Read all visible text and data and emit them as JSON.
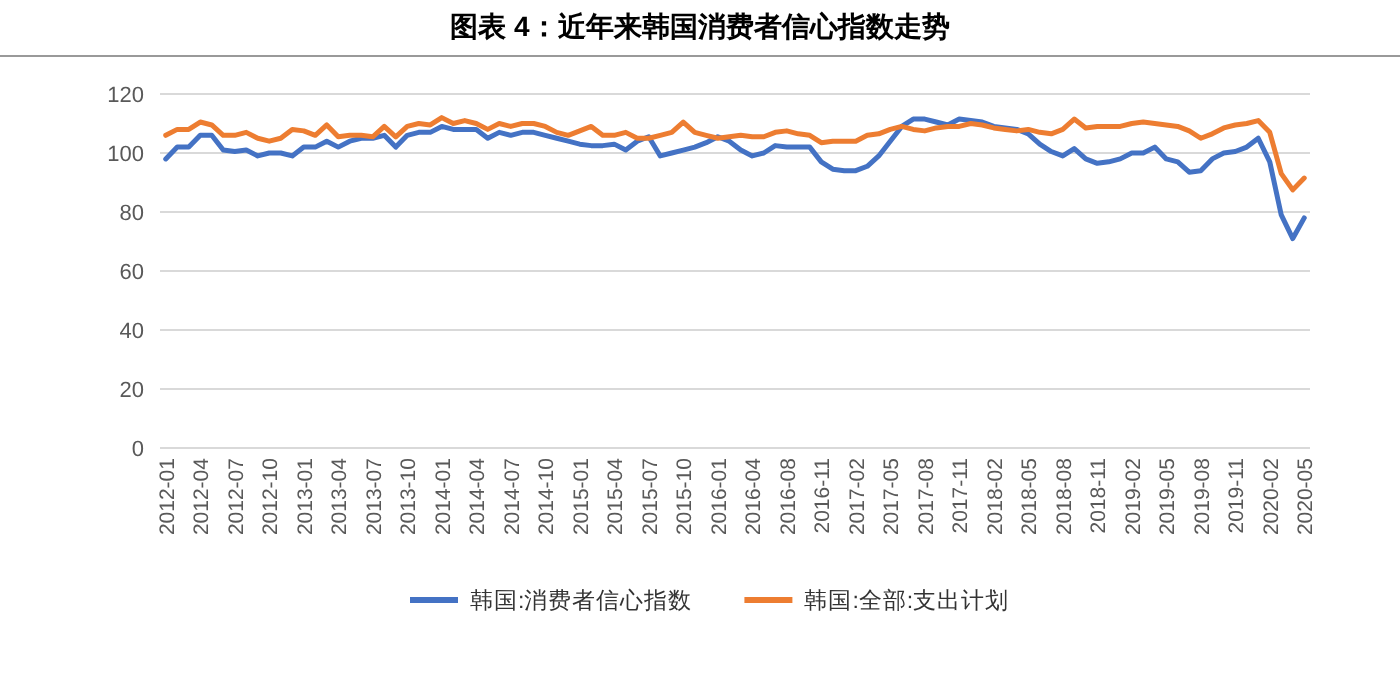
{
  "chart_data": {
    "type": "line",
    "title": "图表 4：近年来韩国消费者信心指数走势",
    "categories": [
      "2012-01",
      null,
      null,
      "2012-04",
      null,
      null,
      "2012-07",
      null,
      null,
      "2012-10",
      null,
      null,
      "2013-01",
      null,
      null,
      "2013-04",
      null,
      null,
      "2013-07",
      null,
      null,
      "2013-10",
      null,
      null,
      "2014-01",
      null,
      null,
      "2014-04",
      null,
      null,
      "2014-07",
      null,
      null,
      "2014-10",
      null,
      null,
      "2015-01",
      null,
      null,
      "2015-04",
      null,
      null,
      "2015-07",
      null,
      null,
      "2015-10",
      null,
      null,
      "2016-01",
      null,
      null,
      "2016-04",
      null,
      null,
      "2016-08",
      null,
      null,
      "2016-11",
      null,
      null,
      "2017-02",
      null,
      null,
      "2017-05",
      null,
      null,
      "2017-08",
      null,
      null,
      "2017-11",
      null,
      null,
      "2018-02",
      null,
      null,
      "2018-05",
      null,
      null,
      "2018-08",
      null,
      null,
      "2018-11",
      null,
      null,
      "2019-02",
      null,
      null,
      "2019-05",
      null,
      null,
      "2019-08",
      null,
      null,
      "2019-11",
      null,
      null,
      "2020-02",
      null,
      null,
      "2020-05"
    ],
    "series": [
      {
        "name": "韩国:消费者信心指数",
        "color": "#4472c4",
        "values": [
          98,
          102,
          102,
          106,
          106,
          101,
          100.5,
          101,
          99,
          100,
          100,
          99,
          102,
          102,
          104,
          102,
          104,
          105,
          105,
          106,
          102,
          106,
          107,
          107,
          109,
          108,
          108,
          108,
          105,
          107,
          106,
          107,
          107,
          106,
          105,
          104,
          103,
          102.5,
          102.5,
          103,
          101,
          104,
          105.5,
          99,
          100,
          101,
          102,
          103.5,
          105.5,
          104,
          101,
          99,
          100,
          102.5,
          102,
          102,
          102,
          97,
          94.5,
          94,
          94,
          95.5,
          99,
          104,
          109,
          111.5,
          111.5,
          110.5,
          109.5,
          111.5,
          111,
          110.5,
          109,
          108.5,
          108,
          106.5,
          103,
          100.5,
          99,
          101.5,
          98,
          96.5,
          97,
          98,
          100,
          100,
          102,
          98,
          97,
          93.5,
          94,
          98,
          100,
          100.5,
          102,
          105,
          97,
          79,
          71,
          78
        ]
      },
      {
        "name": "韩国:全部:支出计划",
        "color": "#ed7d31",
        "values": [
          106,
          108,
          108,
          110.5,
          109.5,
          106,
          106,
          107,
          105,
          104,
          105,
          108,
          107.5,
          106,
          109.5,
          105.5,
          106,
          106,
          105.5,
          109,
          105.5,
          109,
          110,
          109.5,
          112,
          110,
          111,
          110,
          108,
          110,
          109,
          110,
          110,
          109,
          107,
          106,
          107.5,
          109,
          106,
          106,
          107,
          105,
          105,
          106,
          107,
          110.5,
          107,
          106,
          105,
          105.5,
          106,
          105.5,
          105.5,
          107,
          107.5,
          106.5,
          106,
          103.5,
          104,
          104,
          104,
          106,
          106.5,
          108,
          109,
          108,
          107.5,
          108.5,
          109,
          109,
          110,
          109.5,
          108.5,
          108,
          107.5,
          108,
          107,
          106.5,
          108,
          111.5,
          108.5,
          109,
          109,
          109,
          110,
          110.5,
          110,
          109.5,
          109,
          107.5,
          105,
          106.5,
          108.5,
          109.5,
          110,
          111,
          107,
          93,
          87.5,
          91.5
        ]
      }
    ],
    "ylim": [
      0,
      120
    ],
    "yticks": [
      0,
      20,
      40,
      60,
      80,
      100,
      120
    ],
    "grid": "y",
    "legend": "bottom",
    "marker": "none",
    "line_style": "solid"
  }
}
